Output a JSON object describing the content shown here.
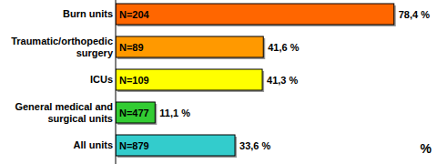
{
  "chart_data": {
    "type": "bar",
    "orientation": "horizontal",
    "categories": [
      "Burn units",
      "Traumatic/orthopedic surgery",
      "ICUs",
      "General medical and surgical units",
      "All units"
    ],
    "values": [
      78.4,
      41.6,
      41.3,
      11.1,
      33.6
    ],
    "value_labels": [
      "78,4 %",
      "41,6 %",
      "41,3 %",
      "11,1 %",
      "33,6 %"
    ],
    "annotations": [
      "N=204",
      "N=89",
      "N=109",
      "N=477",
      "N=879"
    ],
    "colors": [
      "#ff6600",
      "#ff9900",
      "#ffff00",
      "#33cc33",
      "#33cccc"
    ],
    "xlim": [
      0,
      90
    ],
    "x_label": "%",
    "data_labels": true,
    "tick_labels": false,
    "grid": false
  }
}
